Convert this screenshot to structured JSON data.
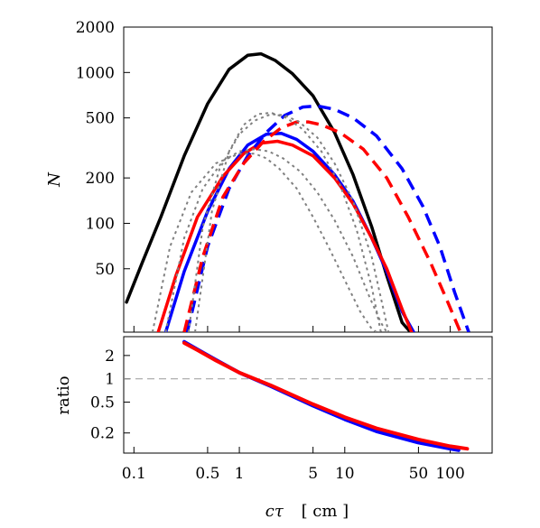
{
  "chart_data": {
    "type": "line",
    "xlabel_symbol": "cτ",
    "xlabel_unit": "[ cm ]",
    "x_scale": "log",
    "xlim": [
      0.08,
      250
    ],
    "x_ticks": [
      {
        "value": 0.1,
        "label": "0.1"
      },
      {
        "value": 0.5,
        "label": "0.5"
      },
      {
        "value": 1,
        "label": "1"
      },
      {
        "value": 5,
        "label": "5"
      },
      {
        "value": 10,
        "label": "10"
      },
      {
        "value": 50,
        "label": "50"
      },
      {
        "value": 100,
        "label": "100"
      }
    ],
    "panels": [
      {
        "id": "top",
        "ylabel": "N",
        "y_scale": "log",
        "ylim": [
          19,
          2000
        ],
        "y_ticks": [
          {
            "value": 50,
            "label": "50"
          },
          {
            "value": 100,
            "label": "100"
          },
          {
            "value": 200,
            "label": "200"
          },
          {
            "value": 500,
            "label": "500"
          },
          {
            "value": 1000,
            "label": "1000"
          },
          {
            "value": 2000,
            "label": "2000"
          }
        ],
        "series": [
          {
            "color": "#000000",
            "style": "solid",
            "x": [
              0.085,
              0.12,
              0.18,
              0.3,
              0.5,
              0.8,
              1.2,
              1.6,
              2.2,
              3.2,
              5,
              8,
              12,
              18,
              25,
              35,
              42
            ],
            "y": [
              30,
              55,
              110,
              280,
              620,
              1050,
              1300,
              1330,
              1200,
              980,
              700,
              400,
              210,
              95,
              45,
              22,
              19
            ]
          },
          {
            "color": "#0000ff",
            "style": "solid",
            "x": [
              0.2,
              0.3,
              0.5,
              0.8,
              1.2,
              1.8,
              2.5,
              3.5,
              5,
              8,
              12,
              18,
              25,
              35,
              45
            ],
            "y": [
              19,
              48,
              120,
              230,
              330,
              390,
              395,
              360,
              300,
              210,
              140,
              80,
              48,
              26,
              19
            ]
          },
          {
            "color": "#ff0000",
            "style": "solid",
            "x": [
              0.17,
              0.25,
              0.4,
              0.7,
              1.1,
              1.6,
              2.3,
              3.2,
              5,
              8,
              12,
              18,
              25,
              35,
              43
            ],
            "y": [
              19,
              45,
              110,
              205,
              290,
              340,
              350,
              330,
              280,
              200,
              135,
              80,
              50,
              27,
              19
            ]
          },
          {
            "color": "#0000ff",
            "style": "dashed",
            "x": [
              0.32,
              0.5,
              0.8,
              1.2,
              1.8,
              2.7,
              4,
              5.5,
              8,
              12,
              20,
              35,
              55,
              80,
              110,
              150
            ],
            "y": [
              19,
              70,
              170,
              280,
              400,
              520,
              590,
              600,
              570,
              500,
              380,
              230,
              130,
              70,
              35,
              19
            ]
          },
          {
            "color": "#ff0000",
            "style": "dashed",
            "x": [
              0.3,
              0.45,
              0.7,
              1.1,
              1.7,
              2.5,
              3.5,
              4.5,
              6,
              9,
              15,
              25,
              40,
              65,
              95,
              125
            ],
            "y": [
              19,
              60,
              150,
              250,
              350,
              430,
              470,
              470,
              450,
              400,
              310,
              200,
              110,
              55,
              30,
              19
            ]
          },
          {
            "color": "#808080",
            "style": "dotted",
            "x": [
              0.15,
              0.22,
              0.35,
              0.6,
              1.0,
              1.4,
              1.8,
              2.4,
              3.5,
              5,
              7,
              10,
              14,
              18,
              20
            ],
            "y": [
              19,
              70,
              160,
              250,
              290,
              290,
              270,
              230,
              170,
              110,
              70,
              42,
              26,
              20,
              19
            ]
          },
          {
            "color": "#808080",
            "style": "dotted",
            "x": [
              0.2,
              0.3,
              0.45,
              0.7,
              1.0,
              1.4,
              1.9,
              2.6,
              3.8,
              5.5,
              8,
              12,
              17,
              22,
              25
            ],
            "y": [
              19,
              80,
              170,
              260,
              300,
              310,
              300,
              270,
              220,
              160,
              105,
              60,
              33,
              22,
              19
            ]
          },
          {
            "color": "#808080",
            "style": "dotted",
            "x": [
              0.38,
              0.55,
              0.8,
              1.1,
              1.5,
              2.0,
              2.8,
              4,
              6,
              9,
              13,
              18,
              22
            ],
            "y": [
              19,
              120,
              300,
              450,
              530,
              540,
              500,
              420,
              300,
              180,
              90,
              38,
              19
            ]
          },
          {
            "color": "#808080",
            "style": "dotted",
            "x": [
              0.33,
              0.45,
              0.65,
              1.0,
              1.4,
              2.0,
              2.7,
              3.7,
              5.5,
              8,
              12,
              18,
              23,
              26
            ],
            "y": [
              19,
              95,
              230,
              390,
              480,
              530,
              520,
              470,
              370,
              250,
              140,
              60,
              28,
              19
            ]
          }
        ]
      },
      {
        "id": "bottom",
        "ylabel": "ratio",
        "y_scale": "log",
        "ylim": [
          0.11,
          3.5
        ],
        "y_ticks": [
          {
            "value": 0.2,
            "label": "0.2"
          },
          {
            "value": 0.5,
            "label": "0.5"
          },
          {
            "value": 1,
            "label": "1"
          },
          {
            "value": 2,
            "label": "2"
          }
        ],
        "reference_line": {
          "value": 1,
          "color": "#999999",
          "style": "dashed"
        },
        "series": [
          {
            "color": "#0000ff",
            "style": "solid",
            "x": [
              0.3,
              0.4,
              0.6,
              1.0,
              2,
              5,
              10,
              20,
              50,
              100,
              120
            ],
            "y": [
              3.0,
              2.4,
              1.75,
              1.2,
              0.8,
              0.45,
              0.3,
              0.21,
              0.15,
              0.125,
              0.12
            ]
          },
          {
            "color": "#ff0000",
            "style": "solid",
            "x": [
              0.3,
              0.4,
              0.6,
              1.0,
              2,
              5,
              10,
              20,
              50,
              100,
              145
            ],
            "y": [
              2.9,
              2.35,
              1.72,
              1.2,
              0.82,
              0.47,
              0.32,
              0.23,
              0.165,
              0.135,
              0.125
            ]
          }
        ]
      }
    ]
  }
}
